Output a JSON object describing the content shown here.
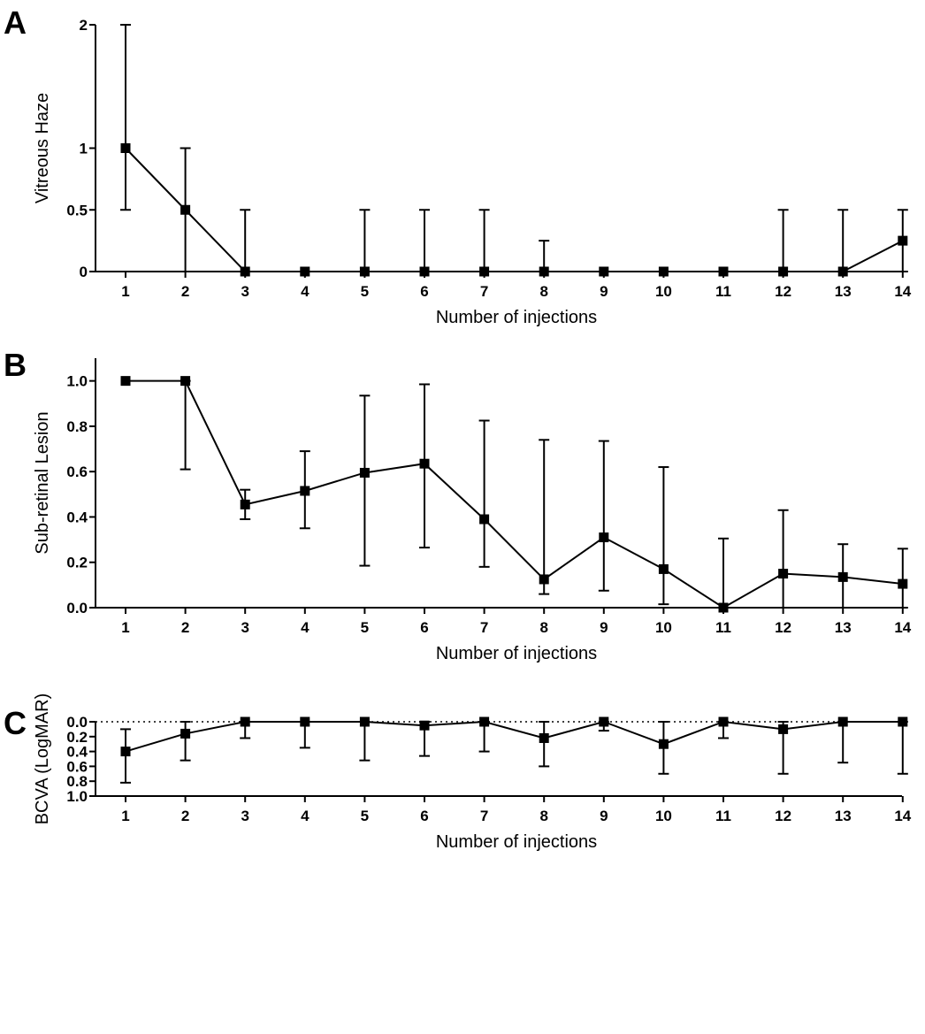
{
  "chart_data": [
    {
      "panel": "A",
      "type": "line",
      "x": [
        1,
        2,
        3,
        4,
        5,
        6,
        7,
        8,
        9,
        10,
        11,
        12,
        13,
        14
      ],
      "values": [
        1,
        0.5,
        0,
        0,
        0,
        0,
        0,
        0,
        0,
        0,
        0,
        0,
        0,
        0.25
      ],
      "err_low": [
        0.5,
        0,
        0,
        0,
        0,
        0,
        0,
        0,
        0,
        0,
        0,
        0,
        0,
        0
      ],
      "err_high": [
        2,
        1,
        0.5,
        0,
        0.5,
        0.5,
        0.5,
        0.25,
        0,
        0,
        0,
        0.5,
        0.5,
        0.5
      ],
      "xlabel": "Number of injections",
      "ylabel": "Vitreous Haze",
      "yticks": [
        0,
        0.5,
        1,
        2
      ],
      "ytick_labels": [
        "0",
        "0.5",
        "1",
        "2"
      ],
      "ylim": [
        0,
        2
      ],
      "xtick_labels": [
        "1",
        "2",
        "3",
        "4",
        "5",
        "6",
        "7",
        "8",
        "9",
        "10",
        "11",
        "12",
        "13",
        "14"
      ],
      "invert_y": false
    },
    {
      "panel": "B",
      "type": "line",
      "x": [
        1,
        2,
        3,
        4,
        5,
        6,
        7,
        8,
        9,
        10,
        11,
        12,
        13,
        14
      ],
      "values": [
        1.0,
        1.0,
        0.455,
        0.515,
        0.595,
        0.635,
        0.39,
        0.125,
        0.31,
        0.17,
        0.0,
        0.15,
        0.135,
        0.105
      ],
      "err_low": [
        1.0,
        0.61,
        0.39,
        0.35,
        0.185,
        0.265,
        0.18,
        0.06,
        0.075,
        0.015,
        0.0,
        0.0,
        0.0,
        0.0
      ],
      "err_high": [
        1.0,
        1.0,
        0.52,
        0.69,
        0.935,
        0.985,
        0.825,
        0.74,
        0.735,
        0.62,
        0.305,
        0.43,
        0.28,
        0.26
      ],
      "xlabel": "Number of injections",
      "ylabel": "Sub-retinal Lesion",
      "yticks": [
        0,
        0.2,
        0.4,
        0.6,
        0.8,
        1.0
      ],
      "ytick_labels": [
        "0.0",
        "0.2",
        "0.4",
        "0.6",
        "0.8",
        "1.0"
      ],
      "ylim": [
        0,
        1.1
      ],
      "xtick_labels": [
        "1",
        "2",
        "3",
        "4",
        "5",
        "6",
        "7",
        "8",
        "9",
        "10",
        "11",
        "12",
        "13",
        "14"
      ],
      "invert_y": false
    },
    {
      "panel": "C",
      "type": "line",
      "x": [
        1,
        2,
        3,
        4,
        5,
        6,
        7,
        8,
        9,
        10,
        11,
        12,
        13,
        14
      ],
      "values": [
        0.4,
        0.16,
        0.0,
        0.0,
        0.0,
        0.05,
        0.0,
        0.22,
        0.0,
        0.3,
        0.0,
        0.1,
        0.0,
        0.0
      ],
      "err_low": [
        0.1,
        0.0,
        0.0,
        0.0,
        0.0,
        0.0,
        0.0,
        0.0,
        0.0,
        0.0,
        0.0,
        0.0,
        0.0,
        0.0
      ],
      "err_high": [
        0.82,
        0.52,
        0.22,
        0.35,
        0.52,
        0.46,
        0.4,
        0.6,
        0.12,
        0.7,
        0.22,
        0.7,
        0.55,
        0.7
      ],
      "xlabel": "Number of injections",
      "ylabel": "BCVA (LogMAR)",
      "yticks": [
        0,
        0.2,
        0.4,
        0.6,
        0.8,
        1.0
      ],
      "ytick_labels": [
        "0.0",
        "0.2",
        "0.4",
        "0.6",
        "0.8",
        "1.0"
      ],
      "ylim": [
        0,
        1.0
      ],
      "xtick_labels": [
        "1",
        "2",
        "3",
        "4",
        "5",
        "6",
        "7",
        "8",
        "9",
        "10",
        "11",
        "12",
        "13",
        "14"
      ],
      "invert_y": true,
      "reference_line": 0
    }
  ]
}
